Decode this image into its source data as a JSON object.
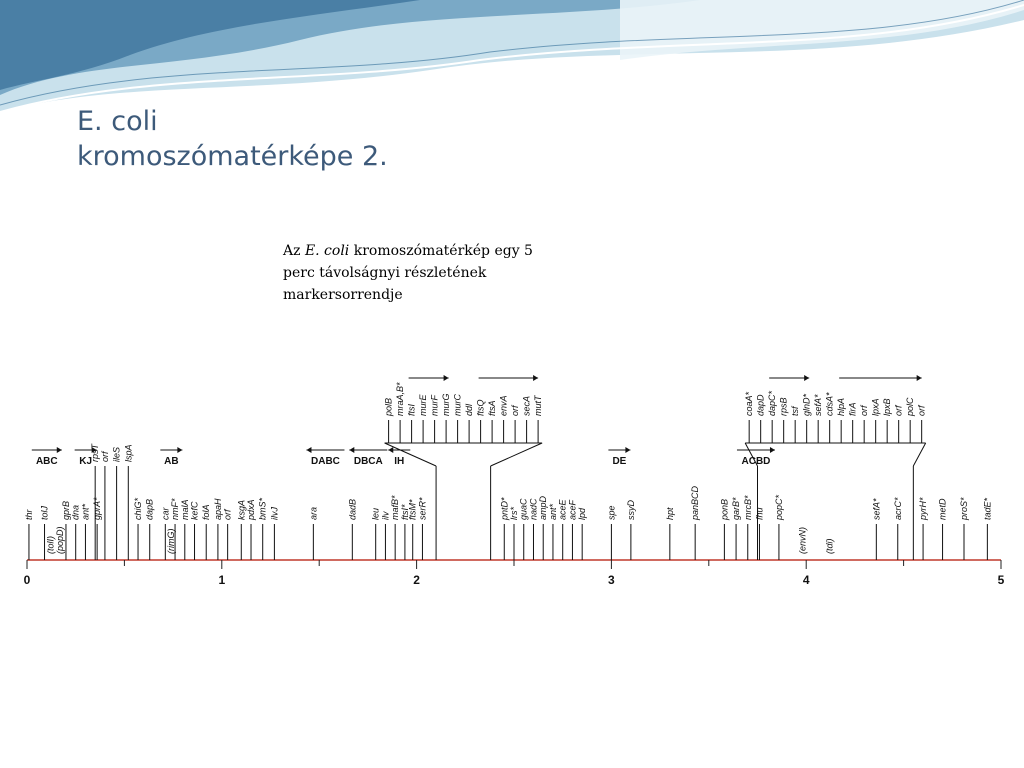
{
  "slide": {
    "title_line1": "E. coli",
    "title_line2": "kromoszómatérképe 2.",
    "caption": {
      "line1_pre": "Az ",
      "line1_italic": "E. coli",
      "line1_post": " kromoszómatérkép  egy 5",
      "line2": "perc távolságnyi részletének",
      "line3": "markersorrendje"
    }
  },
  "colors": {
    "title": "#3d5a7a",
    "axis": "#c0392b",
    "wave_dark": "#5e8fae",
    "wave_light": "#b9d7e6"
  },
  "map": {
    "axis_min": 0,
    "axis_max": 5,
    "ticks": [
      "0",
      "1",
      "2",
      "3",
      "4",
      "5"
    ],
    "operons": [
      {
        "label": "ABC",
        "pos": 0.04,
        "dir": "right"
      },
      {
        "label": "KJ",
        "pos": 0.26,
        "dir": "right"
      },
      {
        "label": "AB",
        "pos": 0.7,
        "dir": "right"
      },
      {
        "label": "DABC",
        "pos": 1.45,
        "dir": "left"
      },
      {
        "label": "DBCA",
        "pos": 1.67,
        "dir": "left"
      },
      {
        "label": "IH",
        "pos": 1.87,
        "dir": "left"
      },
      {
        "label": "DE",
        "pos": 3.0,
        "dir": "right"
      },
      {
        "label": "ACBD",
        "pos": 3.66,
        "dir": "right"
      }
    ],
    "genes": [
      {
        "name": "thr",
        "pos": 0.01,
        "row": 1
      },
      {
        "name": "tolJ",
        "pos": 0.09,
        "row": 1
      },
      {
        "name": "gprB",
        "pos": 0.2,
        "row": 1
      },
      {
        "name": "dna",
        "pos": 0.25,
        "row": 1
      },
      {
        "name": "ant*",
        "pos": 0.3,
        "row": 1
      },
      {
        "name": "gprA*",
        "pos": 0.36,
        "row": 1
      },
      {
        "name": "chiG*",
        "pos": 0.57,
        "row": 1
      },
      {
        "name": "dapB",
        "pos": 0.63,
        "row": 1
      },
      {
        "name": "car",
        "pos": 0.71,
        "row": 1
      },
      {
        "name": "nmF*",
        "pos": 0.76,
        "row": 1
      },
      {
        "name": "malA",
        "pos": 0.81,
        "row": 1
      },
      {
        "name": "kefC",
        "pos": 0.86,
        "row": 1
      },
      {
        "name": "folA",
        "pos": 0.92,
        "row": 1
      },
      {
        "name": "apaH",
        "pos": 0.98,
        "row": 1
      },
      {
        "name": "orf",
        "pos": 1.03,
        "row": 1
      },
      {
        "name": "ksgA",
        "pos": 1.1,
        "row": 1
      },
      {
        "name": "pdxA",
        "pos": 1.15,
        "row": 1
      },
      {
        "name": "bmS*",
        "pos": 1.21,
        "row": 1
      },
      {
        "name": "ilvJ",
        "pos": 1.27,
        "row": 1
      },
      {
        "name": "ara",
        "pos": 1.47,
        "row": 1
      },
      {
        "name": "dadB",
        "pos": 1.67,
        "row": 1
      },
      {
        "name": "leu",
        "pos": 1.79,
        "row": 1
      },
      {
        "name": "ilv",
        "pos": 1.84,
        "row": 1
      },
      {
        "name": "mafB*",
        "pos": 1.89,
        "row": 1
      },
      {
        "name": "ftsI*",
        "pos": 1.94,
        "row": 1
      },
      {
        "name": "ftsM*",
        "pos": 1.98,
        "row": 1
      },
      {
        "name": "serR*",
        "pos": 2.03,
        "row": 1
      },
      {
        "name": "pntD*",
        "pos": 2.45,
        "row": 1
      },
      {
        "name": "lrs*",
        "pos": 2.5,
        "row": 1
      },
      {
        "name": "guaC",
        "pos": 2.55,
        "row": 1
      },
      {
        "name": "nadC",
        "pos": 2.6,
        "row": 1
      },
      {
        "name": "ampD",
        "pos": 2.65,
        "row": 1
      },
      {
        "name": "ant*",
        "pos": 2.7,
        "row": 1
      },
      {
        "name": "aceE",
        "pos": 2.75,
        "row": 1
      },
      {
        "name": "aceF",
        "pos": 2.8,
        "row": 1
      },
      {
        "name": "lpd",
        "pos": 2.85,
        "row": 1
      },
      {
        "name": "spe",
        "pos": 3.0,
        "row": 1
      },
      {
        "name": "ssyD",
        "pos": 3.1,
        "row": 1
      },
      {
        "name": "hpt",
        "pos": 3.3,
        "row": 1
      },
      {
        "name": "panBCD",
        "pos": 3.43,
        "row": 1
      },
      {
        "name": "ponB",
        "pos": 3.58,
        "row": 1
      },
      {
        "name": "garB*",
        "pos": 3.64,
        "row": 1
      },
      {
        "name": "mrcB*",
        "pos": 3.7,
        "row": 1
      },
      {
        "name": "fhu",
        "pos": 3.76,
        "row": 1
      },
      {
        "name": "popC*",
        "pos": 3.86,
        "row": 1
      },
      {
        "name": "sefA*",
        "pos": 4.36,
        "row": 1
      },
      {
        "name": "acrC*",
        "pos": 4.47,
        "row": 1
      },
      {
        "name": "pyrH*",
        "pos": 4.6,
        "row": 1
      },
      {
        "name": "metD",
        "pos": 4.7,
        "row": 1
      },
      {
        "name": "proS*",
        "pos": 4.81,
        "row": 1
      },
      {
        "name": "tadE*",
        "pos": 4.93,
        "row": 1
      },
      {
        "name": "rpsT",
        "pos": 0.35,
        "row": 0
      },
      {
        "name": "orf",
        "pos": 0.4,
        "row": 0
      },
      {
        "name": "ileS",
        "pos": 0.46,
        "row": 0
      },
      {
        "name": "lspA",
        "pos": 0.52,
        "row": 0
      }
    ],
    "paren_genes": [
      {
        "name": "(tolI)",
        "pos": 0.12
      },
      {
        "name": "(popD)",
        "pos": 0.17
      },
      {
        "name": "(rimG)",
        "pos": 0.74
      },
      {
        "name": "(envN)",
        "pos": 3.98
      },
      {
        "name": "(tdi)",
        "pos": 4.12
      }
    ],
    "inset_groups": [
      {
        "anchor_start": 2.1,
        "anchor_end": 2.38,
        "genes": [
          "polB",
          "mraA,B*",
          "ftsI",
          "murE",
          "murF",
          "murG",
          "murC",
          "ddl",
          "ftsQ",
          "ftsA",
          "envA",
          "orf",
          "secA",
          "mutT"
        ]
      },
      {
        "anchor_start": 3.75,
        "anchor_end": 4.55,
        "genes": [
          "coaA*",
          "dapD",
          "dapC*",
          "rpsB",
          "tsf",
          "glnD*",
          "sefA*",
          "cdsA*",
          "hlpA",
          "firA",
          "orf",
          "lpxA",
          "lpxB",
          "orf",
          "polC",
          "orf"
        ]
      }
    ]
  }
}
